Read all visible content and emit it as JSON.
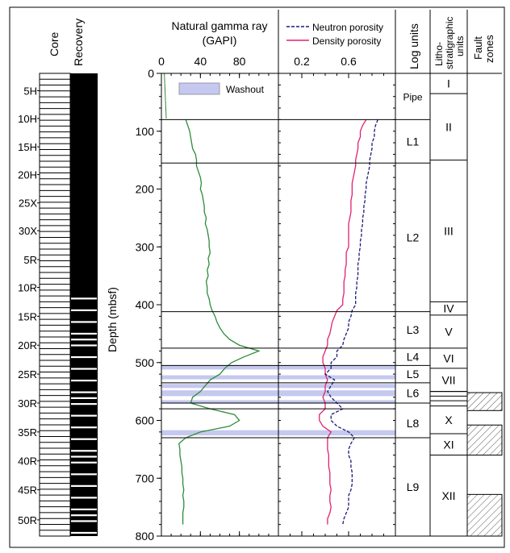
{
  "chart_data": {
    "type": "line",
    "headers": {
      "core": "Core",
      "recovery": "Recovery",
      "gamma_title_1": "Natural gamma ray",
      "gamma_title_2": "(GAPI)",
      "log_units": "Log units",
      "litho_1": "Litho-",
      "litho_2": "stratigraphic",
      "litho_3": "units",
      "fault_1": "Fault",
      "fault_2": "zones"
    },
    "ylabel": "Depth (mbsf)",
    "ylim": [
      0,
      800
    ],
    "depth_ticks": [
      "0",
      "100",
      "200",
      "300",
      "400",
      "500",
      "600",
      "700",
      "800"
    ],
    "gamma": {
      "xlim": [
        0,
        120
      ],
      "ticks": [
        "0",
        "40",
        "80"
      ],
      "color": "#2e8b3a",
      "depths": [
        80,
        90,
        100,
        110,
        120,
        130,
        140,
        150,
        160,
        170,
        180,
        190,
        200,
        210,
        220,
        230,
        240,
        250,
        260,
        270,
        280,
        290,
        300,
        310,
        320,
        330,
        340,
        350,
        360,
        370,
        380,
        390,
        400,
        410,
        420,
        430,
        440,
        450,
        460,
        470,
        480,
        490,
        500,
        510,
        520,
        530,
        540,
        550,
        560,
        570,
        580,
        590,
        600,
        610,
        620,
        630,
        640,
        650,
        660,
        670,
        680,
        690,
        700,
        710,
        720,
        730,
        740,
        750,
        760,
        770,
        780
      ],
      "values": [
        25,
        27,
        29,
        30,
        31,
        32,
        35,
        36,
        36,
        38,
        40,
        41,
        40,
        42,
        43,
        44,
        44,
        46,
        45,
        47,
        48,
        49,
        49,
        50,
        48,
        49,
        47,
        48,
        46,
        47,
        47,
        49,
        50,
        52,
        55,
        57,
        60,
        64,
        70,
        80,
        100,
        85,
        72,
        65,
        60,
        50,
        45,
        40,
        32,
        30,
        50,
        75,
        80,
        70,
        40,
        25,
        18,
        19,
        19,
        20,
        21,
        21,
        22,
        22,
        23,
        22,
        23,
        23,
        22,
        22,
        22
      ],
      "washout_label": "Washout"
    },
    "porosity": {
      "xlim": [
        0,
        1
      ],
      "ticks": [
        "0.2",
        "0.6"
      ],
      "legend": [
        {
          "name": "Neutron porosity",
          "color": "#1a1a7a",
          "style": "dashed"
        },
        {
          "name": "Density porosity",
          "color": "#e0226e",
          "style": "solid"
        }
      ],
      "depths": [
        80,
        90,
        100,
        110,
        120,
        130,
        140,
        150,
        160,
        170,
        180,
        190,
        200,
        210,
        220,
        230,
        240,
        250,
        260,
        270,
        280,
        290,
        300,
        310,
        320,
        330,
        340,
        350,
        360,
        370,
        380,
        390,
        400,
        410,
        420,
        430,
        440,
        450,
        460,
        470,
        480,
        490,
        500,
        510,
        520,
        530,
        540,
        550,
        560,
        570,
        580,
        590,
        600,
        610,
        620,
        630,
        640,
        650,
        660,
        670,
        680,
        690,
        700,
        710,
        720,
        730,
        740,
        750,
        760,
        770,
        780
      ],
      "neutron": [
        0.85,
        0.83,
        0.82,
        0.82,
        0.8,
        0.8,
        0.79,
        0.78,
        0.78,
        0.77,
        0.76,
        0.75,
        0.75,
        0.74,
        0.74,
        0.73,
        0.73,
        0.72,
        0.72,
        0.71,
        0.71,
        0.7,
        0.7,
        0.69,
        0.69,
        0.68,
        0.68,
        0.68,
        0.67,
        0.67,
        0.66,
        0.66,
        0.66,
        0.63,
        0.62,
        0.6,
        0.6,
        0.58,
        0.56,
        0.55,
        0.5,
        0.5,
        0.45,
        0.45,
        0.4,
        0.48,
        0.45,
        0.42,
        0.45,
        0.5,
        0.55,
        0.45,
        0.45,
        0.5,
        0.6,
        0.65,
        0.62,
        0.6,
        0.6,
        0.62,
        0.62,
        0.63,
        0.63,
        0.63,
        0.62,
        0.6,
        0.6,
        0.6,
        0.58,
        0.56,
        0.55
      ],
      "density": [
        0.75,
        0.72,
        0.7,
        0.7,
        0.68,
        0.68,
        0.67,
        0.66,
        0.66,
        0.65,
        0.64,
        0.63,
        0.63,
        0.63,
        0.62,
        0.62,
        0.62,
        0.61,
        0.6,
        0.6,
        0.6,
        0.6,
        0.6,
        0.58,
        0.58,
        0.58,
        0.57,
        0.57,
        0.56,
        0.56,
        0.56,
        0.55,
        0.55,
        0.5,
        0.48,
        0.46,
        0.45,
        0.44,
        0.42,
        0.42,
        0.4,
        0.38,
        0.38,
        0.4,
        0.4,
        0.42,
        0.4,
        0.4,
        0.38,
        0.4,
        0.4,
        0.35,
        0.35,
        0.38,
        0.45,
        0.42,
        0.42,
        0.42,
        0.43,
        0.43,
        0.43,
        0.44,
        0.44,
        0.44,
        0.45,
        0.44,
        0.44,
        0.45,
        0.44,
        0.42,
        0.42
      ]
    },
    "washout_intervals": [
      [
        505,
        512
      ],
      [
        522,
        529
      ],
      [
        537,
        544
      ],
      [
        548,
        558
      ],
      [
        565,
        570
      ],
      [
        617,
        626
      ]
    ],
    "boundaries": [
      80,
      155,
      412,
      475,
      505,
      535,
      570,
      580,
      630
    ],
    "core_labels": [
      {
        "label": "5H",
        "depth": 30
      },
      {
        "label": "10H",
        "depth": 78
      },
      {
        "label": "15H",
        "depth": 127
      },
      {
        "label": "20H",
        "depth": 175
      },
      {
        "label": "25X",
        "depth": 224
      },
      {
        "label": "30X",
        "depth": 272
      },
      {
        "label": "5R",
        "depth": 322
      },
      {
        "label": "10R",
        "depth": 370
      },
      {
        "label": "15R",
        "depth": 420
      },
      {
        "label": "20R",
        "depth": 470
      },
      {
        "label": "25R",
        "depth": 520
      },
      {
        "label": "30R",
        "depth": 570
      },
      {
        "label": "35R",
        "depth": 620
      },
      {
        "label": "40R",
        "depth": 670
      },
      {
        "label": "45R",
        "depth": 720
      },
      {
        "label": "50R",
        "depth": 772
      }
    ],
    "log_units": [
      {
        "label": "Pipe",
        "top": 0,
        "bottom": 80
      },
      {
        "label": "L1",
        "top": 80,
        "bottom": 155
      },
      {
        "label": "L2",
        "top": 155,
        "bottom": 412
      },
      {
        "label": "L3",
        "top": 412,
        "bottom": 475
      },
      {
        "label": "L4",
        "top": 475,
        "bottom": 505
      },
      {
        "label": "L5",
        "top": 505,
        "bottom": 535
      },
      {
        "label": "L6",
        "top": 535,
        "bottom": 570
      },
      {
        "label": "L8",
        "top": 580,
        "bottom": 630
      },
      {
        "label": "L9",
        "top": 630,
        "bottom": 800
      }
    ],
    "litho_units": [
      {
        "label": "I",
        "top": 0,
        "bottom": 35
      },
      {
        "label": "II",
        "top": 35,
        "bottom": 150
      },
      {
        "label": "III",
        "top": 150,
        "bottom": 395
      },
      {
        "label": "IV",
        "top": 395,
        "bottom": 418
      },
      {
        "label": "V",
        "top": 418,
        "bottom": 475
      },
      {
        "label": "VI",
        "top": 475,
        "bottom": 510
      },
      {
        "label": "VII",
        "top": 510,
        "bottom": 550
      },
      {
        "label": "X",
        "top": 575,
        "bottom": 623
      },
      {
        "label": "XI",
        "top": 623,
        "bottom": 660
      },
      {
        "label": "XII",
        "top": 660,
        "bottom": 800
      }
    ],
    "litho_extra_lines": [
      550,
      558,
      566,
      575
    ],
    "fault_zones": [
      [
        552,
        583
      ],
      [
        608,
        660
      ],
      [
        728,
        800
      ]
    ]
  }
}
